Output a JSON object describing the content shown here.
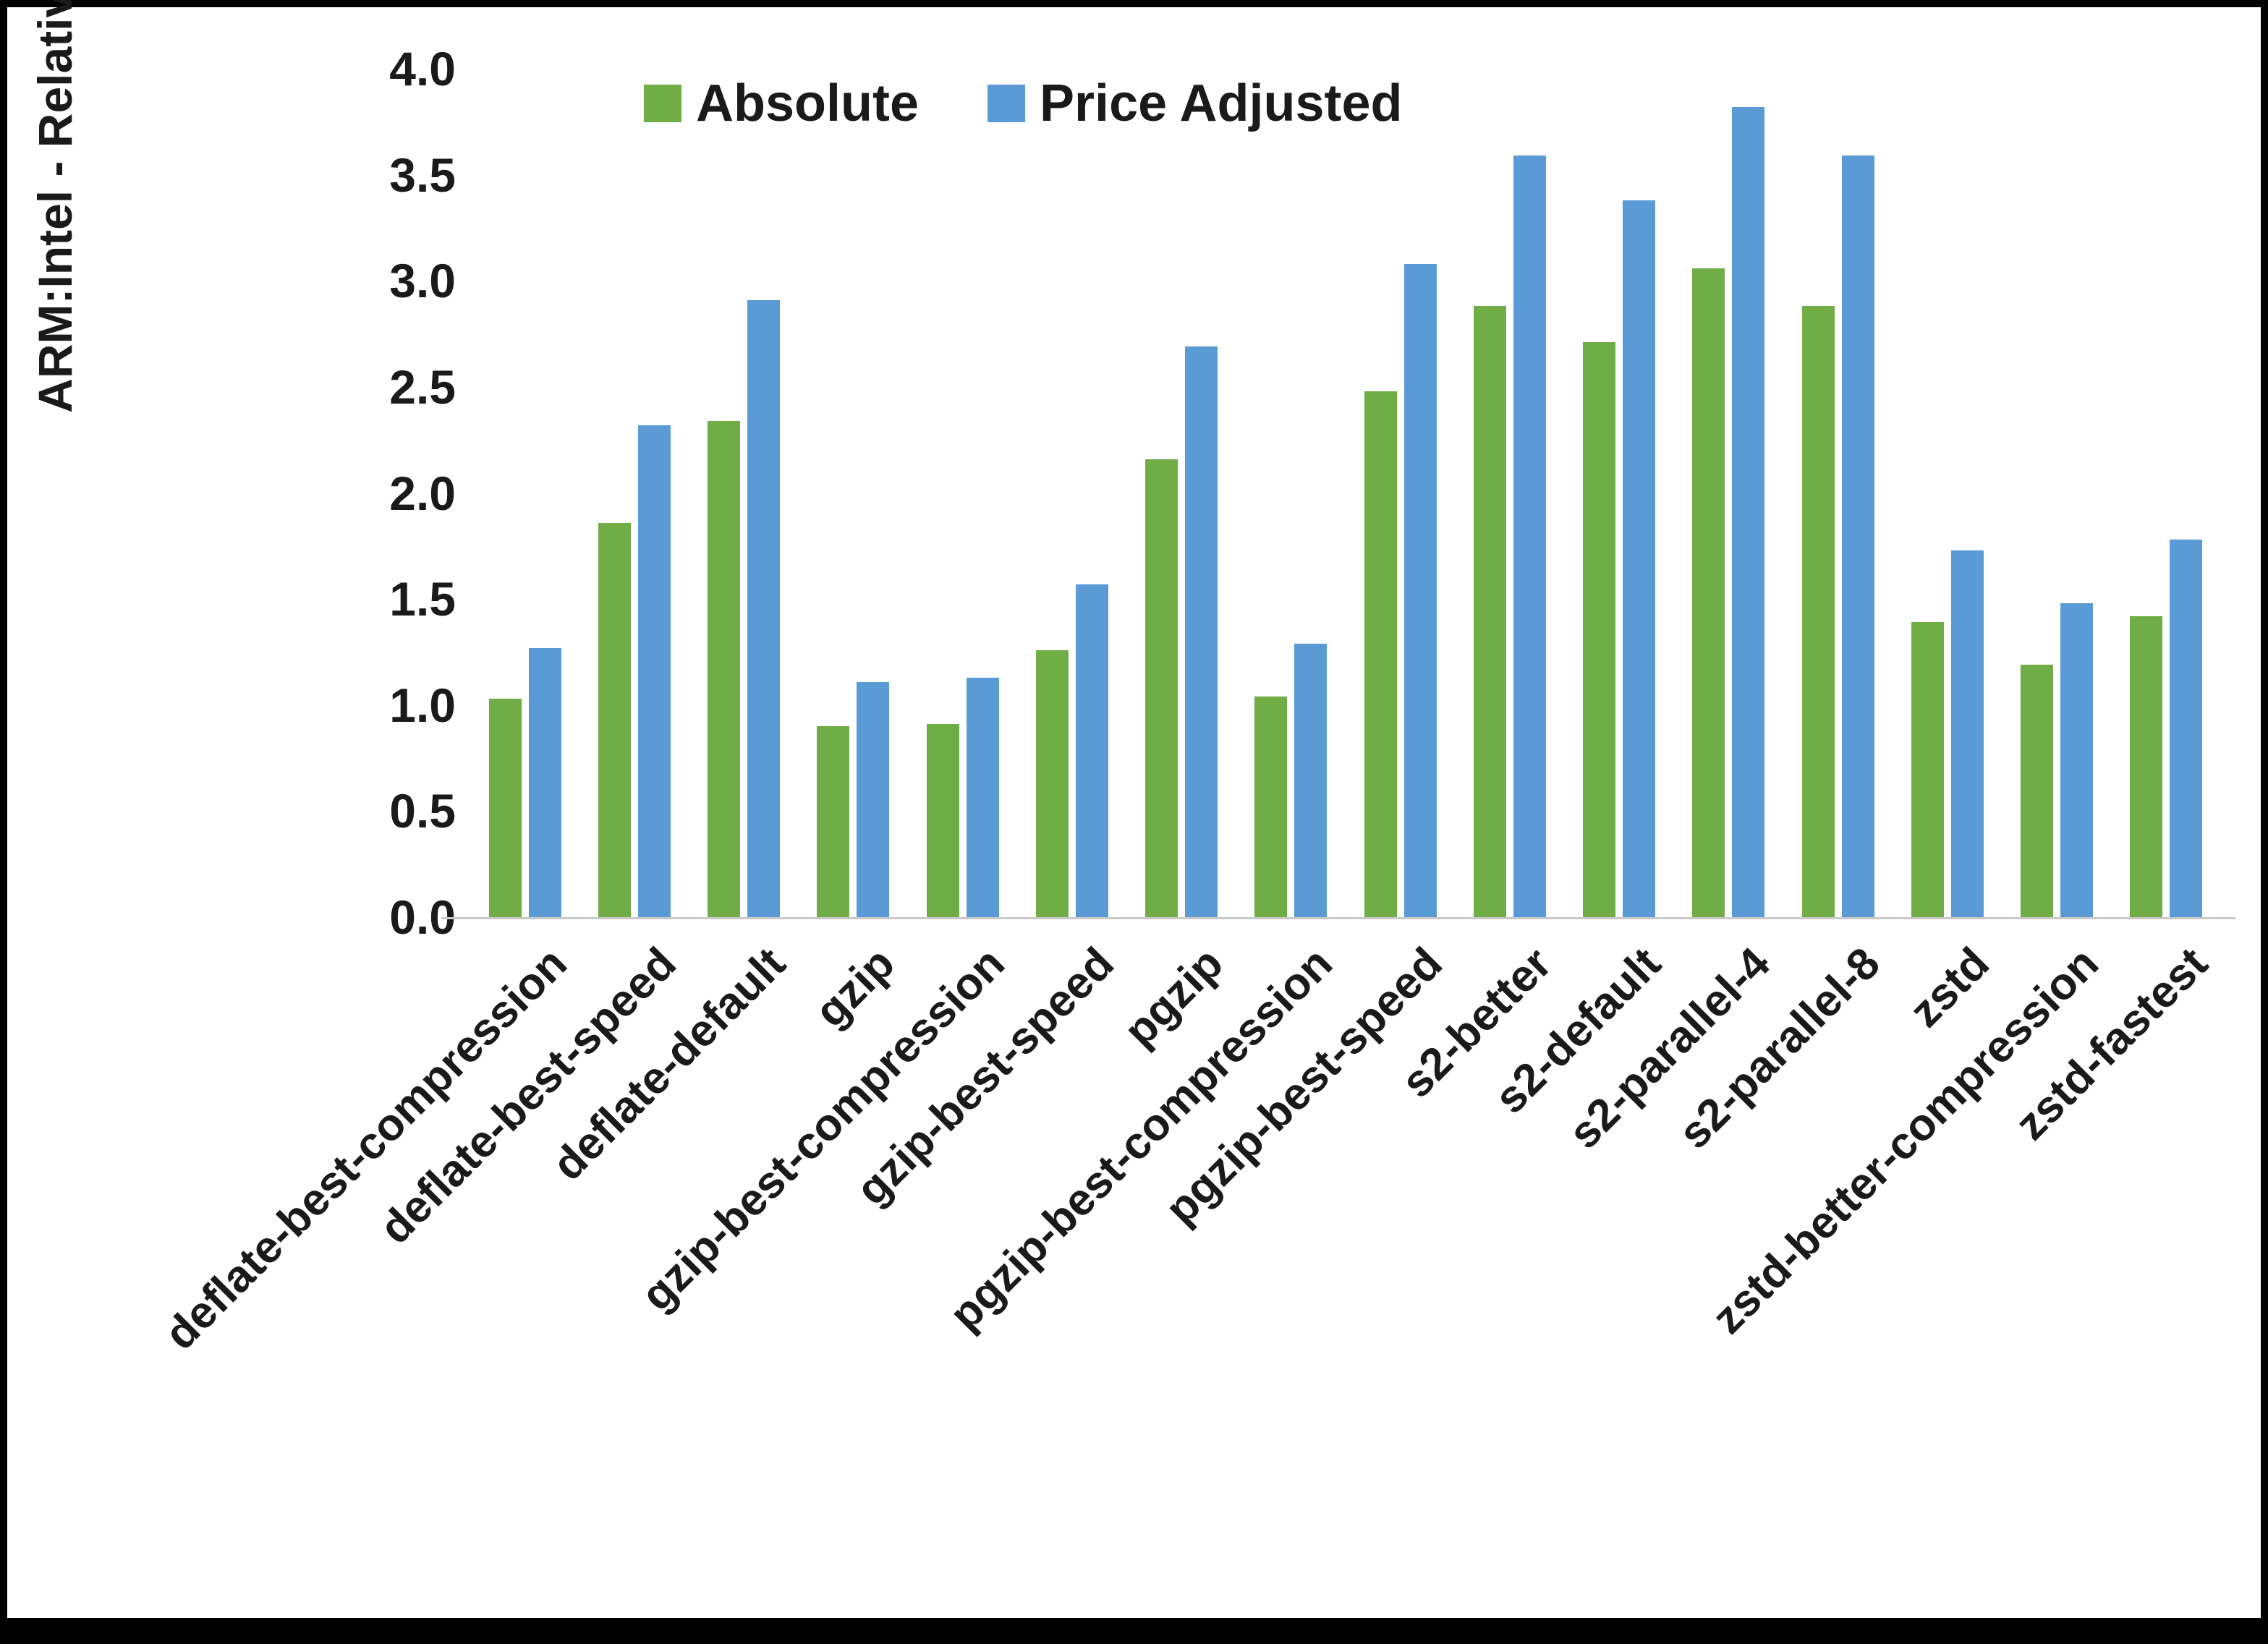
{
  "chart_data": {
    "type": "bar",
    "title": "",
    "xlabel": "",
    "ylabel": "ARM:Intel - Relative Performance",
    "ylim": [
      0.0,
      4.0
    ],
    "y_ticks": [
      "0.0",
      "0.5",
      "1.0",
      "1.5",
      "2.0",
      "2.5",
      "3.0",
      "3.5",
      "4.0"
    ],
    "grid": false,
    "legend_position": "top",
    "categories": [
      "deflate-best-compression",
      "deflate-best-speed",
      "deflate-default",
      "gzip",
      "gzip-best-compression",
      "gzip-best-speed",
      "pgzip",
      "pgzip-best-compression",
      "pgzip-best-speed",
      "s2-better",
      "s2-default",
      "s2-parallel-4",
      "s2-parallel-8",
      "zstd",
      "zstd-better-compression",
      "zstd-fastest"
    ],
    "series": [
      {
        "name": "Absolute",
        "color": "#70AD47",
        "values": [
          1.03,
          1.86,
          2.34,
          0.9,
          0.91,
          1.26,
          2.16,
          1.04,
          2.48,
          2.88,
          2.71,
          3.06,
          2.88,
          1.39,
          1.19,
          1.42
        ]
      },
      {
        "name": "Price Adjusted",
        "color": "#5B9BD5",
        "values": [
          1.27,
          2.32,
          2.91,
          1.11,
          1.13,
          1.57,
          2.69,
          1.29,
          3.08,
          3.59,
          3.38,
          3.82,
          3.59,
          1.73,
          1.48,
          1.78
        ]
      }
    ]
  }
}
